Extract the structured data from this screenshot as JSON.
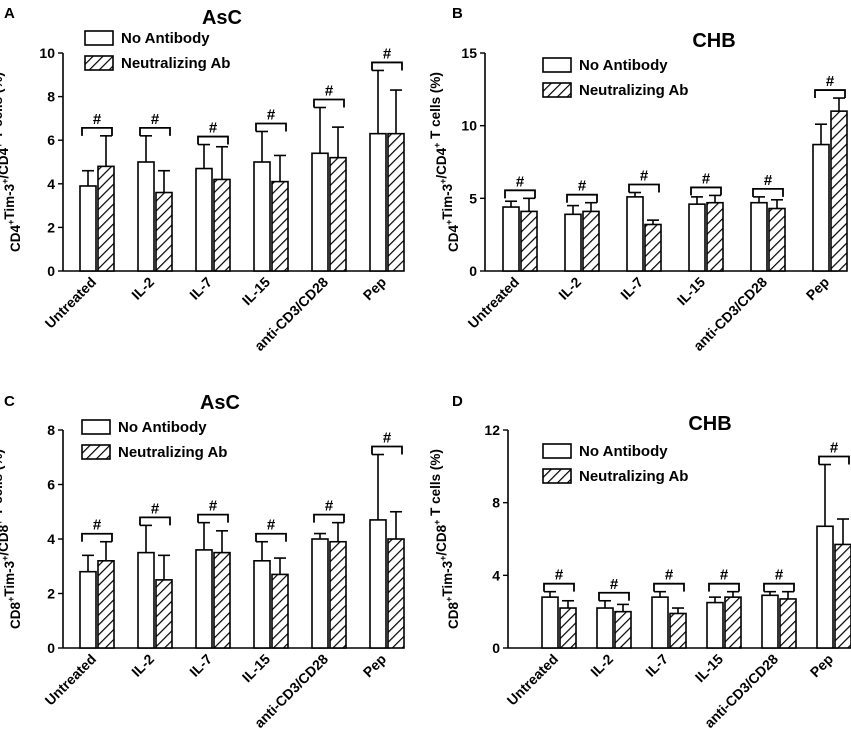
{
  "chart_data": [
    {
      "panel": "A",
      "type": "bar",
      "title": "AsC",
      "ylabel": [
        "CD4",
        "+",
        "Tim-3",
        "+",
        "/CD4",
        "+",
        " T cells (%)"
      ],
      "ylim": [
        0,
        10
      ],
      "yticks": [
        0,
        2,
        4,
        6,
        8,
        10
      ],
      "categories": [
        "Untreated",
        "IL-2",
        "IL-7",
        "IL-15",
        "anti-CD3/CD28",
        "Pep"
      ],
      "legend": [
        "No Antibody",
        "Neutralizing Ab"
      ],
      "series": [
        {
          "name": "No Antibody",
          "values": [
            3.9,
            5.0,
            4.7,
            5.0,
            5.4,
            6.3
          ],
          "errors": [
            0.7,
            1.2,
            1.1,
            1.4,
            2.1,
            2.9
          ]
        },
        {
          "name": "Neutralizing Ab",
          "values": [
            4.8,
            3.6,
            4.2,
            4.1,
            5.2,
            6.3
          ],
          "errors": [
            1.4,
            1.0,
            1.5,
            1.2,
            1.4,
            2.0
          ]
        }
      ],
      "annotation": "#"
    },
    {
      "panel": "B",
      "type": "bar",
      "title": "CHB",
      "ylabel": [
        "CD4",
        "+",
        "Tim-3",
        "+",
        "/CD4",
        "+",
        " T cells (%)"
      ],
      "ylim": [
        0,
        15
      ],
      "yticks": [
        0,
        5,
        10,
        15
      ],
      "categories": [
        "Untreated",
        "IL-2",
        "IL-7",
        "IL-15",
        "anti-CD3/CD28",
        "Pep"
      ],
      "legend": [
        "No Antibody",
        "Neutralizing Ab"
      ],
      "series": [
        {
          "name": "No Antibody",
          "values": [
            4.4,
            3.9,
            5.1,
            4.6,
            4.7,
            8.7
          ],
          "errors": [
            0.4,
            0.6,
            0.3,
            0.5,
            0.4,
            1.4
          ]
        },
        {
          "name": "Neutralizing Ab",
          "values": [
            4.1,
            4.1,
            3.2,
            4.7,
            4.3,
            11.0
          ],
          "errors": [
            0.9,
            0.6,
            0.3,
            0.5,
            0.6,
            0.9
          ]
        }
      ],
      "annotation": "#"
    },
    {
      "panel": "C",
      "type": "bar",
      "title": "AsC",
      "ylabel": [
        "CD8",
        "+",
        "Tim-3",
        "+",
        "/CD8",
        "+",
        " T cells (%)"
      ],
      "ylim": [
        0,
        8
      ],
      "yticks": [
        0,
        2,
        4,
        6,
        8
      ],
      "categories": [
        "Untreated",
        "IL-2",
        "IL-7",
        "IL-15",
        "anti-CD3/CD28",
        "Pep"
      ],
      "legend": [
        "No Antibody",
        "Neutralizing Ab"
      ],
      "series": [
        {
          "name": "No Antibody",
          "values": [
            2.8,
            3.5,
            3.6,
            3.2,
            4.0,
            4.7
          ],
          "errors": [
            0.6,
            1.0,
            1.0,
            0.7,
            0.2,
            2.4
          ]
        },
        {
          "name": "Neutralizing Ab",
          "values": [
            3.2,
            2.5,
            3.5,
            2.7,
            3.9,
            4.0
          ],
          "errors": [
            0.7,
            0.9,
            0.8,
            0.6,
            0.7,
            1.0
          ]
        }
      ],
      "annotation": "#"
    },
    {
      "panel": "D",
      "type": "bar",
      "title": "CHB",
      "ylabel": [
        "CD8",
        "+",
        "Tim-3",
        "+",
        "/CD8",
        "+",
        " T cells (%)"
      ],
      "ylim": [
        0,
        12
      ],
      "yticks": [
        0,
        4,
        8,
        12
      ],
      "categories": [
        "Untreated",
        "IL-2",
        "IL-7",
        "IL-15",
        "anti-CD3/CD28",
        "Pep"
      ],
      "legend": [
        "No Antibody",
        "Neutralizing Ab"
      ],
      "series": [
        {
          "name": "No Antibody",
          "values": [
            2.8,
            2.2,
            2.8,
            2.5,
            2.9,
            6.7
          ],
          "errors": [
            0.3,
            0.4,
            0.3,
            0.3,
            0.2,
            3.4
          ]
        },
        {
          "name": "Neutralizing Ab",
          "values": [
            2.2,
            2.0,
            1.9,
            2.8,
            2.7,
            5.7
          ],
          "errors": [
            0.4,
            0.4,
            0.3,
            0.3,
            0.4,
            1.4
          ]
        }
      ],
      "annotation": "#"
    }
  ]
}
